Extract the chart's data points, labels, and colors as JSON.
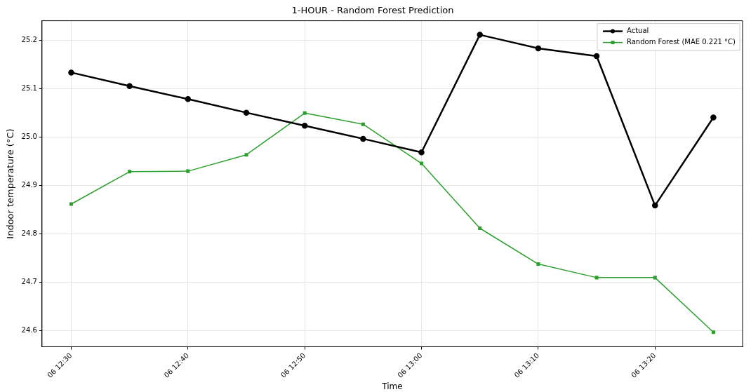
{
  "chart_data": {
    "type": "line",
    "title": "1-HOUR - Random Forest Prediction",
    "xlabel": "Time",
    "ylabel": "Indoor temperature (°C)",
    "categories": [
      "06 12:30",
      null,
      "06 12:40",
      null,
      "06 12:50",
      null,
      "06 13:00",
      null,
      "06 13:10",
      null,
      "06 13:20",
      null
    ],
    "series": [
      {
        "name": "Actual",
        "color": "#000000",
        "marker": "circle",
        "values": [
          25.134,
          25.106,
          25.079,
          25.051,
          25.024,
          24.997,
          24.969,
          25.212,
          25.184,
          25.168,
          24.859,
          25.041
        ]
      },
      {
        "name": "Random Forest (MAE 0.221 °C)",
        "color": "#2ca02c",
        "marker": "square",
        "values": [
          24.862,
          24.929,
          24.93,
          24.964,
          25.05,
          25.027,
          24.946,
          24.812,
          24.738,
          24.71,
          24.71,
          24.597
        ]
      }
    ],
    "ylim": [
      24.567,
      25.241
    ],
    "yticks": [
      24.6,
      24.7,
      24.8,
      24.9,
      {
        "value": 25.0,
        "label": "25.0"
      },
      25.1,
      25.2
    ],
    "grid": true,
    "legend": "top right"
  }
}
